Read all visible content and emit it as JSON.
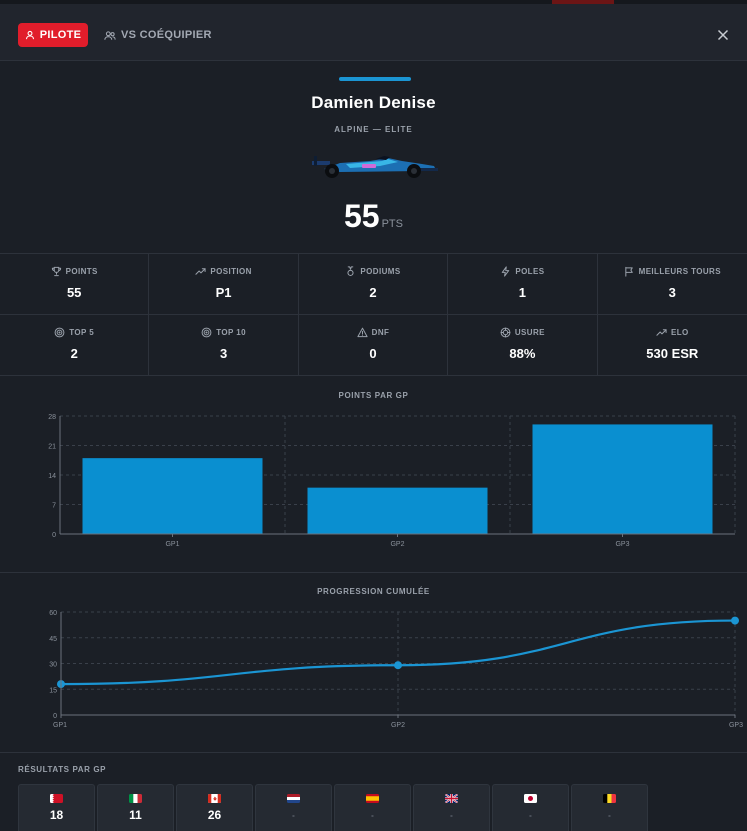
{
  "header": {
    "tab_pilote": "PILOTE",
    "tab_vs": "VS COÉQUIPIER"
  },
  "driver": {
    "name": "Damien Denise",
    "team": "ALPINE — ELITE",
    "points": "55",
    "points_unit": "PTS"
  },
  "stats": [
    {
      "icon": "trophy-icon",
      "label": "POINTS",
      "value": "55"
    },
    {
      "icon": "trend-up-icon",
      "label": "POSITION",
      "value": "P1"
    },
    {
      "icon": "medal-icon",
      "label": "PODIUMS",
      "value": "2"
    },
    {
      "icon": "bolt-icon",
      "label": "POLES",
      "value": "1"
    },
    {
      "icon": "flag-icon",
      "label": "MEILLEURS TOURS",
      "value": "3"
    },
    {
      "icon": "target-icon",
      "label": "TOP 5",
      "value": "2"
    },
    {
      "icon": "target-icon",
      "label": "TOP 10",
      "value": "3"
    },
    {
      "icon": "warning-icon",
      "label": "DNF",
      "value": "0"
    },
    {
      "icon": "tire-icon",
      "label": "USURE",
      "value": "88%"
    },
    {
      "icon": "trend-up-icon",
      "label": "ELO",
      "value": "530 ESR"
    }
  ],
  "chart_data": [
    {
      "type": "bar",
      "title": "POINTS PAR GP",
      "categories": [
        "GP1",
        "GP2",
        "GP3"
      ],
      "values": [
        18,
        11,
        26
      ],
      "ylim": [
        0,
        28
      ],
      "yticks": [
        0,
        7,
        14,
        21,
        28
      ],
      "grid": true,
      "color": "#0a8fd0"
    },
    {
      "type": "line",
      "title": "PROGRESSION CUMULÉE",
      "categories": [
        "GP1",
        "GP2",
        "GP3"
      ],
      "values": [
        18,
        29,
        55
      ],
      "ylim": [
        0,
        60
      ],
      "yticks": [
        0,
        15,
        30,
        45,
        60
      ],
      "grid": true,
      "color": "#1b95d3"
    }
  ],
  "results": {
    "title": "RÉSULTATS PAR GP",
    "items": [
      {
        "flag": "bahrain",
        "value": "18"
      },
      {
        "flag": "italy",
        "value": "11"
      },
      {
        "flag": "canada",
        "value": "26"
      },
      {
        "flag": "netherlands",
        "value": "-"
      },
      {
        "flag": "spain",
        "value": "-"
      },
      {
        "flag": "uk",
        "value": "-"
      },
      {
        "flag": "japan",
        "value": "-"
      },
      {
        "flag": "belgium",
        "value": "-"
      }
    ]
  }
}
